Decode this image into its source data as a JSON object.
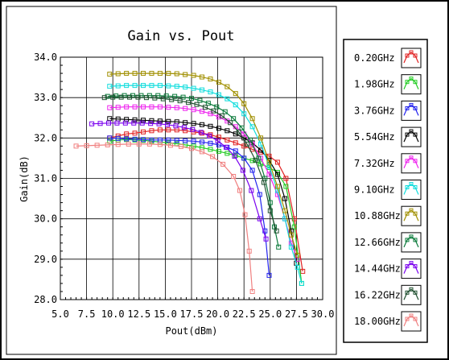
{
  "chart_data": {
    "type": "line",
    "title": "Gain vs. Pout",
    "xlabel": "Pout(dBm)",
    "ylabel": "Gain(dB)",
    "xlim": [
      5.0,
      30.0
    ],
    "ylim": [
      28.0,
      34.0
    ],
    "x_ticks": [
      "5.0",
      "7.5",
      "10.0",
      "12.5",
      "15.0",
      "17.5",
      "20.0",
      "22.5",
      "25.0",
      "27.5",
      "30.0"
    ],
    "y_ticks": [
      "28.0",
      "29.0",
      "30.0",
      "31.0",
      "32.0",
      "33.0",
      "34.0"
    ],
    "grid": true,
    "legend_position": "right",
    "series": [
      {
        "name": "0.20GHz",
        "color": "#e02020",
        "x": [
          9.7,
          10.5,
          11.3,
          12.1,
          12.9,
          13.7,
          14.5,
          15.3,
          16.1,
          16.9,
          17.7,
          18.5,
          19.3,
          20.1,
          20.9,
          21.7,
          22.5,
          23.3,
          24.1,
          24.9,
          25.7,
          26.5,
          27.3,
          28.1
        ],
        "y": [
          32.0,
          32.05,
          32.1,
          32.12,
          32.15,
          32.18,
          32.2,
          32.2,
          32.2,
          32.18,
          32.15,
          32.12,
          32.08,
          32.02,
          31.95,
          31.88,
          31.8,
          31.72,
          31.65,
          31.55,
          31.4,
          31.0,
          30.0,
          28.7
        ]
      },
      {
        "name": "1.98GHz",
        "color": "#22cc22",
        "x": [
          9.7,
          10.5,
          11.3,
          12.1,
          12.9,
          13.7,
          14.5,
          15.3,
          16.1,
          16.9,
          17.7,
          18.5,
          19.3,
          20.1,
          20.9,
          21.7,
          22.5,
          23.3,
          24.1,
          24.9,
          25.7,
          26.5,
          27.3,
          28.0
        ],
        "y": [
          31.92,
          31.95,
          31.96,
          31.95,
          31.94,
          31.92,
          31.9,
          31.88,
          31.86,
          31.83,
          31.8,
          31.76,
          31.72,
          31.67,
          31.62,
          31.57,
          31.5,
          31.44,
          31.36,
          31.27,
          31.15,
          30.8,
          29.8,
          28.4
        ]
      },
      {
        "name": "3.76GHz",
        "color": "#2222ee",
        "x": [
          9.7,
          10.5,
          11.3,
          12.1,
          12.9,
          13.7,
          14.5,
          15.3,
          16.1,
          16.9,
          17.7,
          18.5,
          19.3,
          20.1,
          20.9,
          21.7,
          22.5,
          23.3,
          24.0,
          24.5,
          24.9
        ],
        "y": [
          32.0,
          31.99,
          31.98,
          31.97,
          31.96,
          31.95,
          31.95,
          31.95,
          31.94,
          31.93,
          31.92,
          31.9,
          31.87,
          31.83,
          31.77,
          31.68,
          31.5,
          31.2,
          30.6,
          29.7,
          28.6
        ]
      },
      {
        "name": "5.54GHz",
        "color": "#000000",
        "x": [
          9.7,
          10.5,
          11.3,
          12.1,
          12.9,
          13.7,
          14.5,
          15.3,
          16.1,
          16.9,
          17.7,
          18.5,
          19.3,
          20.1,
          20.9,
          21.7,
          22.5,
          23.3,
          24.1,
          24.9,
          25.7,
          26.4,
          27.0,
          27.5
        ],
        "y": [
          32.48,
          32.47,
          32.46,
          32.45,
          32.44,
          32.43,
          32.42,
          32.41,
          32.4,
          32.38,
          32.36,
          32.33,
          32.29,
          32.24,
          32.18,
          32.1,
          32.0,
          31.88,
          31.7,
          31.45,
          31.1,
          30.5,
          29.7,
          28.9
        ]
      },
      {
        "name": "7.32GHz",
        "color": "#ee22ee",
        "x": [
          9.7,
          10.5,
          11.3,
          12.1,
          12.9,
          13.7,
          14.5,
          15.3,
          16.1,
          16.9,
          17.7,
          18.5,
          19.3,
          20.1,
          20.9,
          21.7,
          22.5,
          23.3,
          24.1,
          24.9,
          25.7,
          26.4,
          27.0,
          27.6
        ],
        "y": [
          32.75,
          32.76,
          32.77,
          32.77,
          32.77,
          32.77,
          32.77,
          32.76,
          32.75,
          32.73,
          32.7,
          32.66,
          32.6,
          32.52,
          32.42,
          32.28,
          32.1,
          31.85,
          31.5,
          31.1,
          30.6,
          30.0,
          29.4,
          29.0
        ]
      },
      {
        "name": "9.10GHz",
        "color": "#11dddd",
        "x": [
          9.7,
          10.5,
          11.3,
          12.1,
          12.9,
          13.7,
          14.5,
          15.3,
          16.1,
          16.9,
          17.7,
          18.5,
          19.3,
          20.1,
          20.9,
          21.7,
          22.5,
          23.3,
          24.1,
          24.9,
          25.7,
          26.4,
          27.0,
          27.6,
          28.0
        ],
        "y": [
          33.28,
          33.29,
          33.3,
          33.3,
          33.3,
          33.3,
          33.3,
          33.29,
          33.28,
          33.26,
          33.23,
          33.19,
          33.14,
          33.07,
          32.97,
          32.82,
          32.6,
          32.28,
          31.85,
          31.3,
          30.7,
          30.0,
          29.3,
          28.8,
          28.4
        ]
      },
      {
        "name": "10.88GHz",
        "color": "#a08f00",
        "x": [
          9.7,
          10.5,
          11.3,
          12.1,
          12.9,
          13.7,
          14.5,
          15.3,
          16.1,
          16.9,
          17.7,
          18.5,
          19.3,
          20.1,
          20.9,
          21.7,
          22.5,
          23.3,
          24.1,
          24.9,
          25.7,
          26.4,
          27.0,
          27.6
        ],
        "y": [
          33.58,
          33.59,
          33.6,
          33.6,
          33.6,
          33.6,
          33.6,
          33.6,
          33.59,
          33.57,
          33.55,
          33.51,
          33.46,
          33.38,
          33.27,
          33.1,
          32.85,
          32.48,
          32.0,
          31.4,
          30.8,
          30.2,
          29.6,
          29.1
        ]
      },
      {
        "name": "12.66GHz",
        "color": "#0a7a3a",
        "x": [
          9.5,
          10.3,
          11.1,
          11.9,
          12.7,
          13.5,
          14.3,
          15.1,
          15.9,
          16.7,
          17.5,
          18.3,
          19.1,
          19.9,
          20.7,
          21.5,
          22.3,
          23.1,
          23.9,
          24.5,
          25.0,
          25.4,
          25.8
        ],
        "y": [
          33.03,
          33.04,
          33.05,
          33.05,
          33.05,
          33.05,
          33.05,
          33.04,
          33.03,
          33.01,
          32.98,
          32.93,
          32.86,
          32.77,
          32.65,
          32.48,
          32.25,
          31.95,
          31.5,
          31.0,
          30.4,
          29.8,
          29.3
        ]
      },
      {
        "name": "14.44GHz",
        "color": "#7a00ee",
        "x": [
          8.0,
          8.8,
          9.6,
          10.4,
          11.2,
          12.0,
          12.8,
          13.6,
          14.4,
          15.2,
          16.0,
          16.8,
          17.6,
          18.4,
          19.2,
          20.0,
          20.8,
          21.6,
          22.4,
          23.2,
          24.0,
          24.6
        ],
        "y": [
          32.35,
          32.36,
          32.37,
          32.37,
          32.37,
          32.37,
          32.37,
          32.36,
          32.35,
          32.33,
          32.3,
          32.26,
          32.21,
          32.14,
          32.05,
          31.93,
          31.77,
          31.55,
          31.2,
          30.7,
          30.0,
          29.5
        ]
      },
      {
        "name": "16.22GHz",
        "color": "#1f4f2f",
        "x": [
          9.2,
          10.0,
          10.8,
          11.6,
          12.4,
          13.2,
          14.0,
          14.8,
          15.6,
          16.4,
          17.2,
          18.0,
          18.8,
          19.6,
          20.4,
          21.2,
          22.0,
          22.8,
          23.6,
          24.4,
          25.0,
          25.6
        ],
        "y": [
          33.0,
          33.01,
          33.01,
          33.01,
          33.01,
          33.0,
          32.99,
          32.97,
          32.95,
          32.92,
          32.88,
          32.83,
          32.76,
          32.67,
          32.55,
          32.38,
          32.15,
          31.85,
          31.45,
          30.9,
          30.2,
          29.7
        ]
      },
      {
        "name": "18.00GHz",
        "color": "#f08080",
        "x": [
          6.5,
          7.5,
          8.5,
          9.5,
          10.5,
          11.5,
          12.5,
          13.5,
          14.5,
          15.5,
          16.5,
          17.5,
          18.5,
          19.5,
          20.5,
          21.5,
          22.1,
          22.6,
          23.0,
          23.3
        ],
        "y": [
          31.8,
          31.81,
          31.82,
          31.83,
          31.84,
          31.85,
          31.85,
          31.85,
          31.84,
          31.82,
          31.79,
          31.74,
          31.66,
          31.54,
          31.35,
          31.05,
          30.7,
          30.1,
          29.2,
          28.2
        ]
      }
    ]
  }
}
